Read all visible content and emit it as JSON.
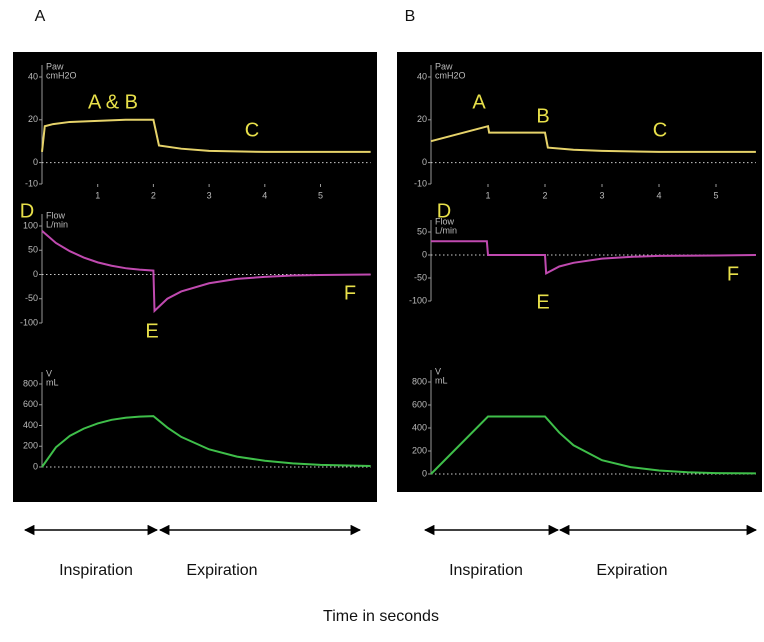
{
  "figure": {
    "panels": [
      {
        "label": "A",
        "phases": [
          "Inspiration",
          "Expiration"
        ]
      },
      {
        "label": "B",
        "phases": [
          "Inspiration",
          "Expiration"
        ]
      }
    ],
    "caption": "Time in seconds"
  },
  "chart_data": [
    {
      "type": "line",
      "ylabel": [
        "Paw",
        "cmH2O"
      ],
      "annotations": [
        "A & B",
        "C"
      ],
      "color": "#e6d36a",
      "x": [
        0,
        0.05,
        0.2,
        0.5,
        1,
        1.5,
        1.95,
        2,
        2.1,
        2.5,
        3,
        4,
        5,
        5.9
      ],
      "values": [
        5,
        17,
        18,
        19,
        19.5,
        20,
        20,
        20,
        8,
        6.5,
        5.5,
        5,
        5,
        5
      ],
      "xlim": [
        0,
        5.9
      ],
      "ylim": [
        -10,
        40
      ],
      "xticks": [
        1,
        2,
        3,
        4,
        5
      ],
      "yticks": [
        -10,
        0,
        20,
        40
      ]
    },
    {
      "type": "line",
      "ylabel": [
        "Flow",
        "L/min"
      ],
      "annotations": [
        "D",
        "E",
        "F"
      ],
      "color": "#c04ab0",
      "x": [
        0,
        0.25,
        0.5,
        0.75,
        1,
        1.25,
        1.5,
        1.75,
        2,
        2.02,
        2.25,
        2.5,
        3,
        3.5,
        4,
        4.5,
        5,
        5.9
      ],
      "values": [
        90,
        65,
        48,
        35,
        25,
        18,
        13,
        10,
        8,
        -75,
        -50,
        -35,
        -18,
        -9,
        -5,
        -2,
        -1,
        0
      ],
      "xlim": [
        0,
        5.9
      ],
      "ylim": [
        -100,
        100
      ],
      "yticks": [
        -100,
        -50,
        0,
        50,
        100
      ]
    },
    {
      "type": "line",
      "ylabel": [
        "V",
        "mL"
      ],
      "annotations": [],
      "color": "#3fbf4a",
      "x": [
        0,
        0.25,
        0.5,
        0.75,
        1,
        1.25,
        1.5,
        1.75,
        2,
        2.25,
        2.5,
        3,
        3.5,
        4,
        4.5,
        5,
        5.9
      ],
      "values": [
        0,
        190,
        300,
        370,
        420,
        455,
        475,
        485,
        490,
        380,
        290,
        170,
        100,
        60,
        35,
        20,
        10
      ],
      "xlim": [
        0,
        5.9
      ],
      "ylim": [
        0,
        800
      ],
      "yticks": [
        0,
        200,
        400,
        600,
        800
      ]
    },
    {
      "type": "line",
      "ylabel": [
        "Paw",
        "cmH2O"
      ],
      "annotations": [
        "A",
        "B",
        "C"
      ],
      "color": "#e6d36a",
      "x": [
        0,
        1,
        1.02,
        1.95,
        2,
        2.05,
        2.5,
        3,
        4,
        5,
        5.7
      ],
      "values": [
        10,
        17,
        14,
        14,
        14,
        7,
        6,
        5.5,
        5,
        5,
        5
      ],
      "xlim": [
        0,
        5.7
      ],
      "ylim": [
        -10,
        40
      ],
      "xticks": [
        1,
        2,
        3,
        4,
        5
      ],
      "yticks": [
        -10,
        0,
        20,
        40
      ]
    },
    {
      "type": "line",
      "ylabel": [
        "Flow",
        "L/min"
      ],
      "annotations": [
        "D",
        "E",
        "F"
      ],
      "color": "#c04ab0",
      "x": [
        0,
        0.98,
        1,
        2,
        2.02,
        2.25,
        2.5,
        3,
        3.5,
        4,
        5,
        5.7
      ],
      "values": [
        30,
        30,
        0,
        0,
        -40,
        -25,
        -17,
        -8,
        -4,
        -2,
        -1,
        0
      ],
      "xlim": [
        0,
        5.7
      ],
      "ylim": [
        -100,
        50
      ],
      "yticks": [
        -100,
        -50,
        0,
        50
      ]
    },
    {
      "type": "line",
      "ylabel": [
        "V",
        "mL"
      ],
      "annotations": [],
      "color": "#3fbf4a",
      "x": [
        0,
        1,
        2,
        2.25,
        2.5,
        3,
        3.5,
        4,
        4.5,
        5,
        5.7
      ],
      "values": [
        0,
        500,
        500,
        360,
        250,
        120,
        60,
        30,
        15,
        8,
        5
      ],
      "xlim": [
        0,
        5.7
      ],
      "ylim": [
        0,
        800
      ],
      "yticks": [
        0,
        200,
        400,
        600,
        800
      ]
    }
  ]
}
